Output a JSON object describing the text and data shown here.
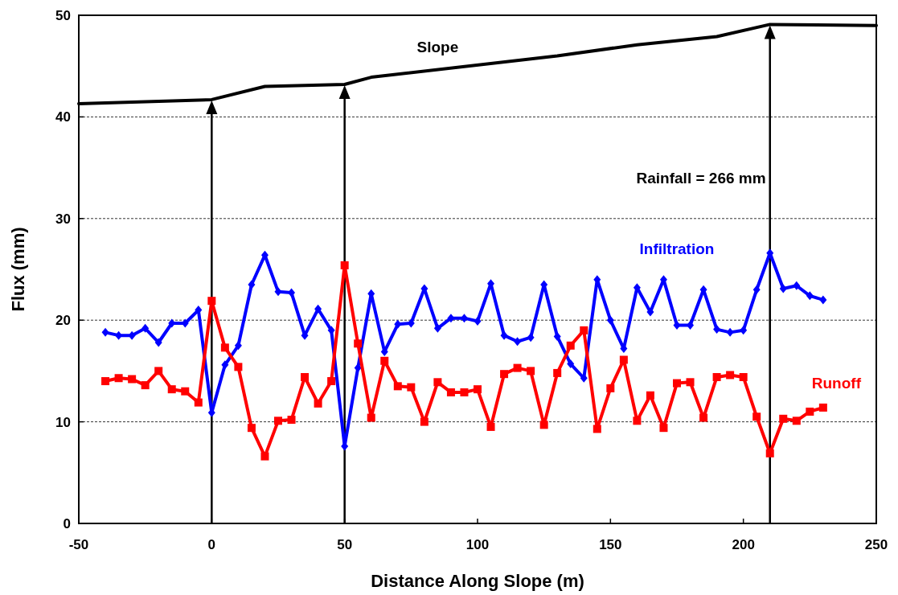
{
  "chart_data": {
    "type": "line",
    "xlabel": "Distance Along Slope (m)",
    "ylabel": "Flux (mm)",
    "xlim": [
      -50,
      250
    ],
    "xticks": [
      -50,
      0,
      50,
      100,
      150,
      200,
      250
    ],
    "ylim": [
      0,
      50
    ],
    "yticks": [
      0,
      10,
      20,
      30,
      40,
      50
    ],
    "grid": "y",
    "annotations": [
      "Rainfall = 266 mm"
    ],
    "ref_lines": [
      {
        "axis": "x",
        "value": 0,
        "color": "#000000"
      },
      {
        "axis": "x",
        "value": 50,
        "color": "#000000"
      },
      {
        "axis": "x",
        "value": 210,
        "color": "#000000"
      }
    ],
    "series": [
      {
        "name": "Slope",
        "color": "#000000",
        "marker": "none",
        "x": [
          -50,
          0,
          20,
          50,
          60,
          130,
          160,
          190,
          210,
          250
        ],
        "values": [
          41.3,
          41.7,
          43.0,
          43.2,
          43.9,
          46.0,
          47.1,
          47.9,
          49.1,
          49.0
        ]
      },
      {
        "name": "Infiltration",
        "color": "#0000ff",
        "marker": "diamond",
        "x": [
          -40,
          -35,
          -30,
          -25,
          -20,
          -15,
          -10,
          -5,
          0,
          5,
          10,
          15,
          20,
          25,
          30,
          35,
          40,
          45,
          50,
          55,
          60,
          65,
          70,
          75,
          80,
          85,
          90,
          95,
          100,
          105,
          110,
          115,
          120,
          125,
          130,
          135,
          140,
          145,
          150,
          155,
          160,
          165,
          170,
          175,
          180,
          185,
          190,
          195,
          200,
          205,
          210,
          215,
          220,
          225,
          230
        ],
        "values": [
          18.8,
          18.5,
          18.5,
          19.2,
          17.8,
          19.7,
          19.7,
          21.0,
          10.9,
          15.6,
          17.5,
          23.5,
          26.4,
          22.8,
          22.7,
          18.5,
          21.1,
          19.0,
          7.6,
          15.3,
          22.6,
          16.9,
          19.6,
          19.7,
          23.1,
          19.2,
          20.2,
          20.2,
          19.9,
          23.6,
          18.5,
          17.9,
          18.3,
          23.5,
          18.4,
          15.7,
          14.3,
          24.0,
          20.0,
          17.2,
          23.2,
          20.8,
          24.0,
          19.5,
          19.5,
          23.0,
          19.1,
          18.8,
          19.0,
          23.0,
          26.6,
          23.1,
          23.4,
          22.4,
          22.0
        ]
      },
      {
        "name": "Runoff",
        "color": "#ff0000",
        "marker": "square",
        "x": [
          -40,
          -35,
          -30,
          -25,
          -20,
          -15,
          -10,
          -5,
          0,
          5,
          10,
          15,
          20,
          25,
          30,
          35,
          40,
          45,
          50,
          55,
          60,
          65,
          70,
          75,
          80,
          85,
          90,
          95,
          100,
          105,
          110,
          115,
          120,
          125,
          130,
          135,
          140,
          145,
          150,
          155,
          160,
          165,
          170,
          175,
          180,
          185,
          190,
          195,
          200,
          205,
          210,
          215,
          220,
          225,
          230
        ],
        "values": [
          14.0,
          14.3,
          14.2,
          13.6,
          15.0,
          13.2,
          13.0,
          11.9,
          21.9,
          17.3,
          15.4,
          9.4,
          6.6,
          10.1,
          10.2,
          14.4,
          11.8,
          14.0,
          25.4,
          17.7,
          10.4,
          16.0,
          13.5,
          13.4,
          10.0,
          13.9,
          12.9,
          12.9,
          13.2,
          9.5,
          14.7,
          15.3,
          15.0,
          9.7,
          14.8,
          17.5,
          19.0,
          9.3,
          13.3,
          16.1,
          10.1,
          12.6,
          9.4,
          13.8,
          13.9,
          10.4,
          14.4,
          14.6,
          14.4,
          10.5,
          6.9,
          10.3,
          10.1,
          11.0,
          11.4
        ]
      }
    ]
  }
}
